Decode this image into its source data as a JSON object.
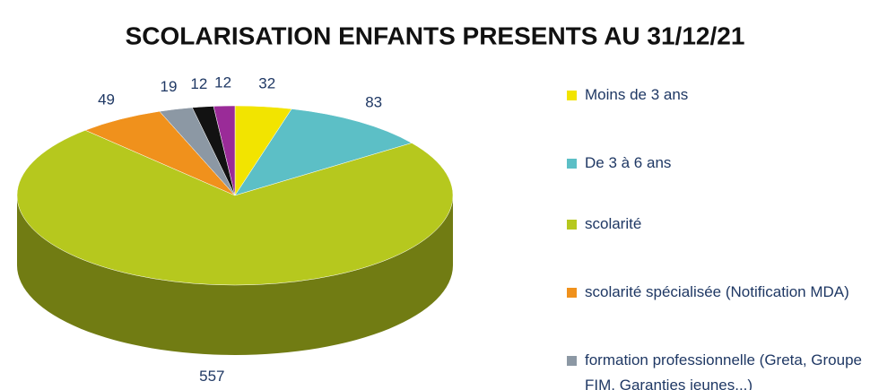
{
  "chart_data": {
    "type": "pie3d",
    "title": "SCOLARISATION ENFANTS PRESENTS AU 31/12/21",
    "categories": [
      "Moins de 3 ans",
      "De 3 à 6 ans",
      "scolarité",
      "scolarité spécialisée (Notification MDA)",
      "formation professionnelle (Greta, Groupe FIM, Garanties jeunes...)",
      null,
      null
    ],
    "values": [
      32,
      83,
      557,
      49,
      19,
      12,
      12
    ],
    "colors": [
      "#f2e400",
      "#5cbfc6",
      "#b6c81e",
      "#f0911c",
      "#8c98a4",
      "#121212",
      "#9a2b98"
    ],
    "legend": "right"
  }
}
